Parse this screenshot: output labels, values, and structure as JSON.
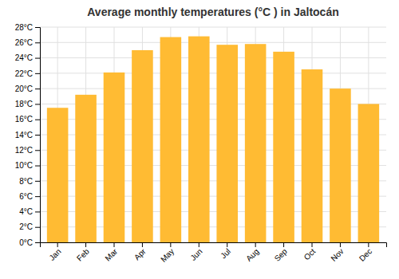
{
  "chart_data": {
    "type": "bar",
    "title": "Average monthly temperatures (°C ) in Jaltocán",
    "categories": [
      "Jan",
      "Feb",
      "Mar",
      "Apr",
      "May",
      "Jun",
      "Jul",
      "Aug",
      "Sep",
      "Oct",
      "Nov",
      "Dec"
    ],
    "values": [
      17.5,
      19.2,
      22.1,
      25.0,
      26.7,
      26.8,
      25.7,
      25.8,
      24.8,
      22.5,
      20.0,
      18.0
    ],
    "color": "#FFBB33",
    "ylim": [
      0,
      28
    ],
    "yticks": [
      {
        "value": 0,
        "label": "0°C"
      },
      {
        "value": 2,
        "label": "2°C"
      },
      {
        "value": 4,
        "label": "4°C"
      },
      {
        "value": 6,
        "label": "6°C"
      },
      {
        "value": 8,
        "label": "8°C"
      },
      {
        "value": 10,
        "label": "10°C"
      },
      {
        "value": 12,
        "label": "12°C"
      },
      {
        "value": 14,
        "label": "14°C"
      },
      {
        "value": 16,
        "label": "16°C"
      },
      {
        "value": 18,
        "label": "18°C"
      },
      {
        "value": 20,
        "label": "20°C"
      },
      {
        "value": 22,
        "label": "22°C"
      },
      {
        "value": 24,
        "label": "24°C"
      },
      {
        "value": 26,
        "label": "26°C"
      },
      {
        "value": 28,
        "label": "28°C"
      }
    ],
    "grid": true
  }
}
